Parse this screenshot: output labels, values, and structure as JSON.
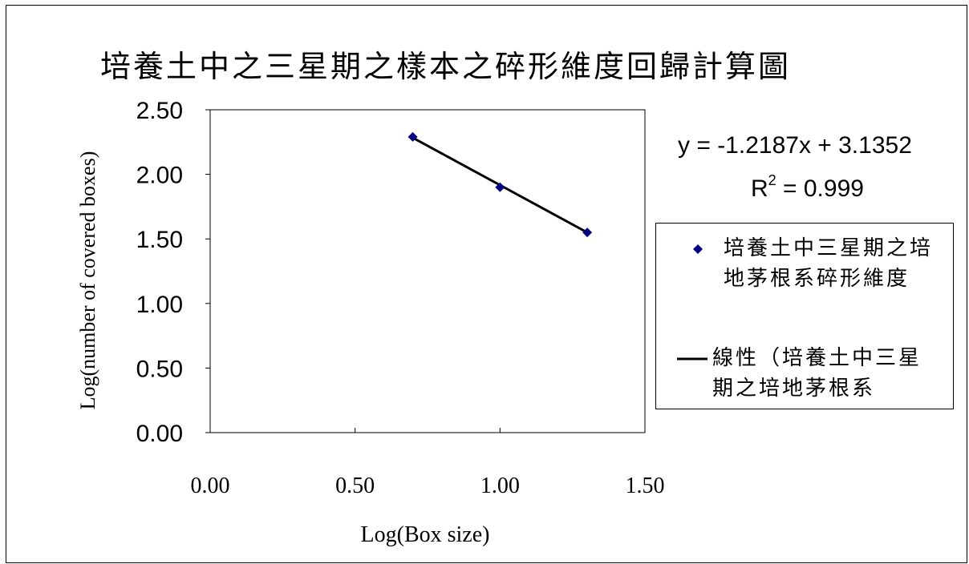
{
  "chart_data": {
    "type": "scatter",
    "title": "培養土中之三星期之樣本之碎形維度回歸計算圖",
    "xlabel": "Log(Box size)",
    "ylabel": "Log(number of covered boxes)",
    "xlim": [
      0,
      1.5
    ],
    "ylim": [
      0,
      2.5
    ],
    "x_ticks": [
      "0.00",
      "0.50",
      "1.00",
      "1.50"
    ],
    "y_ticks": [
      "0.00",
      "0.50",
      "1.00",
      "1.50",
      "2.00",
      "2.50"
    ],
    "series": [
      {
        "name": "培養土中三星期之培地茅根系碎形維度",
        "x": [
          0.699,
          1.0,
          1.301
        ],
        "y": [
          2.29,
          1.9,
          1.55
        ]
      }
    ],
    "trendline": {
      "name": "線性（培養土中三星期之培地茅根系",
      "slope": -1.2187,
      "intercept": 3.1352,
      "equation": "y = -1.2187x + 3.1352",
      "r2_label": "R",
      "r2_value": " = 0.999"
    },
    "legend": {
      "position": "right",
      "entries": [
        {
          "label": "培養土中三星期之培地茅根系碎形維度"
        },
        {
          "label": "線性（培養土中三星期之培地茅根系"
        }
      ]
    },
    "colors": {
      "marker": "#000080",
      "trendline": "#000000"
    },
    "grid": false
  }
}
